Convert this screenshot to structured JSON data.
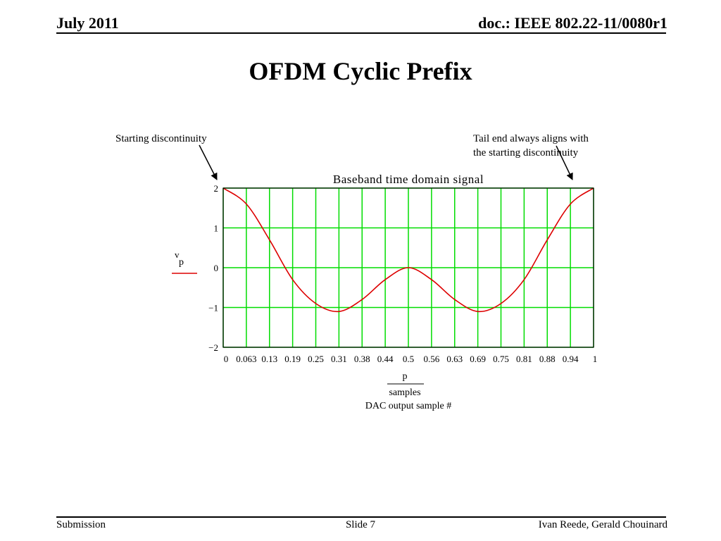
{
  "header": {
    "date": "July 2011",
    "doc_id": "doc.: IEEE 802.22-11/0080r1"
  },
  "slide_title": "OFDM Cyclic Prefix",
  "annotations": {
    "start": "Starting discontinuity",
    "tail_line1": "Tail end always aligns with",
    "tail_line2": "the starting discontinuity"
  },
  "chart_data": {
    "type": "line",
    "title": "Baseband time domain signal",
    "ylabel_main": "v",
    "ylabel_sub": "p",
    "xlabel_numerator": "p",
    "xlabel_denominator": "samples",
    "xlabel_caption": "DAC output sample #",
    "xlim": [
      0,
      1
    ],
    "ylim": [
      -2,
      2
    ],
    "x_ticks": [
      "0",
      "0.063",
      "0.13",
      "0.19",
      "0.25",
      "0.31",
      "0.38",
      "0.44",
      "0.5",
      "0.56",
      "0.63",
      "0.69",
      "0.75",
      "0.81",
      "0.88",
      "0.94",
      "1"
    ],
    "y_ticks": [
      "2",
      "1",
      "0",
      "−1",
      "−2"
    ],
    "grid": true,
    "colors": {
      "line": "#dd0000",
      "grid": "#00dd00",
      "frame": "#000000"
    },
    "series": [
      {
        "x": [
          0,
          0.0625,
          0.125,
          0.1875,
          0.25,
          0.3125,
          0.375,
          0.4375,
          0.5,
          0.5625,
          0.625,
          0.6875,
          0.75,
          0.8125,
          0.875,
          0.9375,
          1
        ],
        "values": [
          2.0,
          1.6,
          0.7,
          -0.3,
          -0.9,
          -1.1,
          -0.8,
          -0.3,
          0.0,
          -0.3,
          -0.8,
          -1.1,
          -0.9,
          -0.3,
          0.7,
          1.6,
          2.0
        ]
      }
    ]
  },
  "footer": {
    "left": "Submission",
    "center": "Slide 7",
    "right": "Ivan Reede, Gerald Chouinard"
  }
}
